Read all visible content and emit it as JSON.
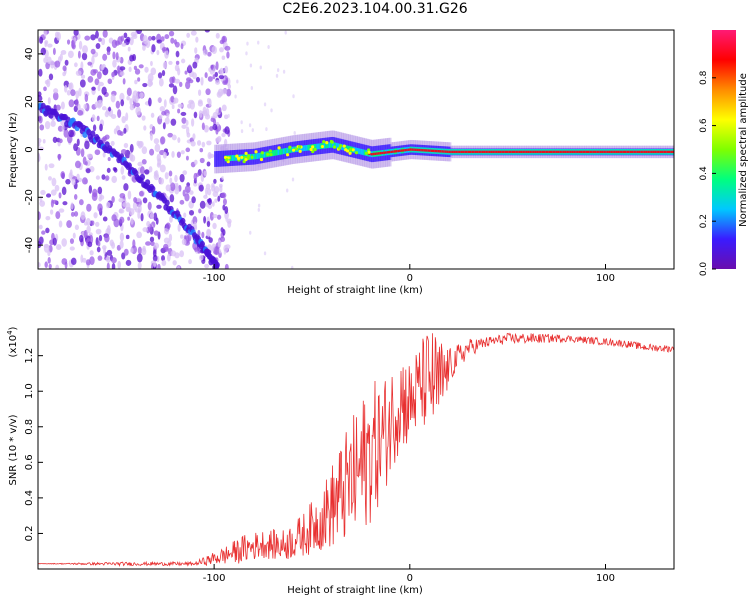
{
  "title": "C2E6.2023.104.00.31.G26",
  "chart_data": [
    {
      "type": "heatmap",
      "xlabel": "Height of straight line (km)",
      "ylabel": "Frequency (Hz)",
      "xlim": [
        -190,
        135
      ],
      "ylim": [
        -50,
        50
      ],
      "xticks": [
        -100,
        0,
        100
      ],
      "yticks": [
        -40,
        -20,
        0,
        20,
        40
      ],
      "colorbar": {
        "label": "Normalized spectral amplitude",
        "range": [
          0.0,
          1.0
        ],
        "ticks": [
          "0.0",
          "0.2",
          "0.4",
          "0.6",
          "0.8"
        ],
        "colors": [
          "#6a0dad",
          "#3a1bff",
          "#00c8ff",
          "#00ff7f",
          "#7fff00",
          "#ffff00",
          "#ff8c00",
          "#ff0000",
          "#ff1a75"
        ]
      },
      "features": {
        "noise_region_x": [
          -190,
          -98
        ],
        "descending_track": [
          [
            -190,
            18
          ],
          [
            -170,
            10
          ],
          [
            -150,
            -2
          ],
          [
            -130,
            -18
          ],
          [
            -110,
            -36
          ],
          [
            -98,
            -50
          ]
        ],
        "carrier_line": [
          [
            -100,
            -4
          ],
          [
            -80,
            -3
          ],
          [
            -60,
            0
          ],
          [
            -40,
            2
          ],
          [
            -20,
            -2
          ],
          [
            0,
            0
          ],
          [
            20,
            -1
          ],
          [
            60,
            -1
          ],
          [
            100,
            -1
          ],
          [
            135,
            -1
          ]
        ]
      },
      "grid": false
    },
    {
      "type": "line",
      "xlabel": "Height of straight line (km)",
      "ylabel": "SNR (10 * v/v)",
      "ylabel_scale": "(x10",
      "ylabel_scale_exp": "4",
      "ylabel_scale_close": ")",
      "xlim": [
        -190,
        135
      ],
      "ylim": [
        0,
        1.35
      ],
      "xticks": [
        -100,
        0,
        100
      ],
      "yticks": [
        0.2,
        0.4,
        0.6,
        0.8,
        1.0,
        1.2
      ],
      "color": "#e83030",
      "series": [
        {
          "x": [
            -190,
            -150,
            -110,
            -95,
            -85,
            -75,
            -65,
            -55,
            -45,
            -35,
            -25,
            -20,
            -15,
            -10,
            -5,
            0,
            5,
            10,
            15,
            20,
            30,
            40,
            50,
            60,
            80,
            100,
            110,
            120,
            135
          ],
          "y": [
            0.03,
            0.03,
            0.03,
            0.08,
            0.12,
            0.15,
            0.14,
            0.2,
            0.3,
            0.45,
            0.6,
            0.7,
            0.75,
            0.85,
            1.0,
            0.95,
            1.05,
            1.1,
            1.05,
            1.15,
            1.25,
            1.28,
            1.3,
            1.3,
            1.3,
            1.28,
            1.27,
            1.25,
            1.24
          ],
          "noise": [
            0.0,
            0.01,
            0.01,
            0.05,
            0.08,
            0.08,
            0.09,
            0.12,
            0.18,
            0.3,
            0.4,
            0.4,
            0.35,
            0.3,
            0.3,
            0.25,
            0.25,
            0.3,
            0.3,
            0.1,
            0.05,
            0.03,
            0.03,
            0.03,
            0.02,
            0.02,
            0.02,
            0.02,
            0.02
          ]
        }
      ],
      "grid": false
    }
  ]
}
